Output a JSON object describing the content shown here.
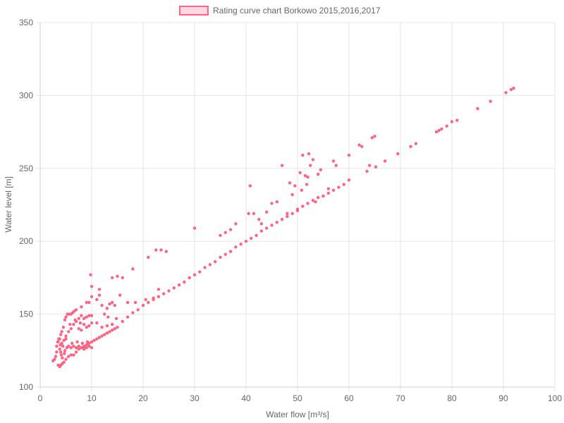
{
  "chart_data": {
    "type": "scatter",
    "title": "",
    "xlabel": "Water flow [m³/s]",
    "ylabel": "Water level [m]",
    "xlim": [
      0,
      100
    ],
    "ylim": [
      100,
      350
    ],
    "xticks": [
      0,
      10,
      20,
      30,
      40,
      50,
      60,
      70,
      80,
      90,
      100
    ],
    "yticks": [
      100,
      150,
      200,
      250,
      300,
      350
    ],
    "grid": true,
    "legend_position": "top-center",
    "colors": {
      "point": "#ff6384",
      "legend_fill": "#ffd9e1",
      "grid": "#e6e6e6"
    },
    "series": [
      {
        "name": "Rating curve chart Borkowo 2015,2016,2017",
        "points": [
          [
            2.5,
            118
          ],
          [
            2.8,
            119
          ],
          [
            3.0,
            121
          ],
          [
            3.2,
            124
          ],
          [
            3.5,
            131
          ],
          [
            3.8,
            133
          ],
          [
            4.0,
            136
          ],
          [
            4.2,
            138
          ],
          [
            4.5,
            141
          ],
          [
            4.8,
            146
          ],
          [
            5.0,
            148
          ],
          [
            5.3,
            150
          ],
          [
            5.6,
            150
          ],
          [
            6.0,
            150
          ],
          [
            6.3,
            151
          ],
          [
            6.6,
            152
          ],
          [
            7.0,
            153
          ],
          [
            3.5,
            115
          ],
          [
            3.8,
            114
          ],
          [
            4.0,
            115
          ],
          [
            4.3,
            116
          ],
          [
            4.6,
            117
          ],
          [
            5.0,
            119
          ],
          [
            5.5,
            121
          ],
          [
            6.0,
            122
          ],
          [
            6.5,
            122
          ],
          [
            7.0,
            124
          ],
          [
            7.5,
            126
          ],
          [
            8.0,
            127
          ],
          [
            8.5,
            128
          ],
          [
            9.0,
            129
          ],
          [
            9.5,
            130
          ],
          [
            10.0,
            131
          ],
          [
            10.5,
            132
          ],
          [
            11.0,
            133
          ],
          [
            11.5,
            134
          ],
          [
            12.0,
            135
          ],
          [
            12.5,
            136
          ],
          [
            13.0,
            137
          ],
          [
            13.5,
            138
          ],
          [
            14.0,
            139
          ],
          [
            14.5,
            140
          ],
          [
            15.0,
            141
          ],
          [
            3.2,
            128
          ],
          [
            3.4,
            131
          ],
          [
            3.6,
            133
          ],
          [
            3.8,
            126
          ],
          [
            4.0,
            124
          ],
          [
            4.2,
            130
          ],
          [
            4.4,
            128
          ],
          [
            4.6,
            132
          ],
          [
            4.8,
            125
          ],
          [
            5.0,
            133
          ],
          [
            5.2,
            127
          ],
          [
            4.1,
            122
          ],
          [
            4.3,
            120
          ],
          [
            3.9,
            129
          ],
          [
            4.7,
            123
          ],
          [
            5.5,
            128
          ],
          [
            6.0,
            127
          ],
          [
            6.5,
            128
          ],
          [
            7.0,
            127
          ],
          [
            7.5,
            128
          ],
          [
            8.0,
            127
          ],
          [
            8.5,
            126
          ],
          [
            9.0,
            127
          ],
          [
            9.5,
            128
          ],
          [
            10.0,
            127
          ],
          [
            6.2,
            130
          ],
          [
            7.2,
            131
          ],
          [
            8.2,
            130
          ],
          [
            9.2,
            131
          ],
          [
            5.0,
            135
          ],
          [
            5.5,
            138
          ],
          [
            6.0,
            140
          ],
          [
            6.5,
            143
          ],
          [
            7.0,
            145
          ],
          [
            7.5,
            147
          ],
          [
            8.0,
            149
          ],
          [
            8.5,
            147
          ],
          [
            9.0,
            148
          ],
          [
            9.5,
            149
          ],
          [
            10.0,
            149
          ],
          [
            5.8,
            143
          ],
          [
            6.8,
            146
          ],
          [
            7.8,
            144
          ],
          [
            7.5,
            140
          ],
          [
            8.0,
            139
          ],
          [
            9.0,
            141
          ],
          [
            10.0,
            144
          ],
          [
            11.0,
            144
          ],
          [
            12.0,
            141
          ],
          [
            13.0,
            142
          ],
          [
            14.0,
            143
          ],
          [
            8.5,
            143
          ],
          [
            9.5,
            142
          ],
          [
            8.0,
            155
          ],
          [
            9.0,
            158
          ],
          [
            10.0,
            162
          ],
          [
            11.0,
            160
          ],
          [
            11.5,
            163
          ],
          [
            9.5,
            158
          ],
          [
            12.0,
            156
          ],
          [
            13.0,
            154
          ],
          [
            13.5,
            157
          ],
          [
            14.0,
            158
          ],
          [
            14.5,
            156
          ],
          [
            12.5,
            150
          ],
          [
            13.2,
            148
          ],
          [
            14.8,
            147
          ],
          [
            9.8,
            177
          ],
          [
            10.0,
            169
          ],
          [
            11.5,
            167
          ],
          [
            14.0,
            175
          ],
          [
            15.0,
            176
          ],
          [
            16.0,
            175
          ],
          [
            18.0,
            181
          ],
          [
            21.0,
            189
          ],
          [
            15.5,
            163
          ],
          [
            17.0,
            158
          ],
          [
            18.5,
            158
          ],
          [
            20.5,
            160
          ],
          [
            22.0,
            161
          ],
          [
            23.0,
            167
          ],
          [
            22.5,
            194
          ],
          [
            23.5,
            194
          ],
          [
            24.5,
            193
          ],
          [
            30.0,
            209
          ],
          [
            35.0,
            204
          ],
          [
            36.0,
            206
          ],
          [
            37.0,
            208
          ],
          [
            38.0,
            212
          ],
          [
            16.0,
            145
          ],
          [
            17.0,
            148
          ],
          [
            18.0,
            151
          ],
          [
            19.0,
            153
          ],
          [
            20.0,
            156
          ],
          [
            21.0,
            158
          ],
          [
            22.0,
            160
          ],
          [
            23.0,
            162
          ],
          [
            24.0,
            164
          ],
          [
            25.0,
            166
          ],
          [
            26.0,
            168
          ],
          [
            27.0,
            170
          ],
          [
            28.0,
            172
          ],
          [
            29.0,
            175
          ],
          [
            30.0,
            177
          ],
          [
            31.0,
            179
          ],
          [
            32.0,
            182
          ],
          [
            33.0,
            184
          ],
          [
            34.0,
            186
          ],
          [
            35.0,
            189
          ],
          [
            36.0,
            191
          ],
          [
            37.0,
            193
          ],
          [
            38.0,
            196
          ],
          [
            39.0,
            198
          ],
          [
            40.0,
            200
          ],
          [
            41.0,
            202
          ],
          [
            42.0,
            204
          ],
          [
            43.0,
            207
          ],
          [
            44.0,
            209
          ],
          [
            45.0,
            211
          ],
          [
            46.0,
            213
          ],
          [
            47.0,
            215
          ],
          [
            48.0,
            217
          ],
          [
            49.0,
            219
          ],
          [
            50.0,
            222
          ],
          [
            51.0,
            224
          ],
          [
            52.0,
            226
          ],
          [
            53.0,
            228
          ],
          [
            54.0,
            230
          ],
          [
            55.0,
            231
          ],
          [
            56.0,
            233
          ],
          [
            57.0,
            235
          ],
          [
            58.0,
            237
          ],
          [
            59.0,
            239
          ],
          [
            60.0,
            242
          ],
          [
            40.5,
            219
          ],
          [
            40.8,
            238
          ],
          [
            41.5,
            219
          ],
          [
            42.5,
            215
          ],
          [
            43.0,
            212
          ],
          [
            44.0,
            220
          ],
          [
            45.0,
            226
          ],
          [
            46.0,
            227
          ],
          [
            47.0,
            252
          ],
          [
            48.0,
            219
          ],
          [
            48.5,
            240
          ],
          [
            49.0,
            232
          ],
          [
            49.5,
            238
          ],
          [
            50.0,
            221
          ],
          [
            50.5,
            247
          ],
          [
            51.0,
            259
          ],
          [
            51.5,
            245
          ],
          [
            52.0,
            244
          ],
          [
            52.5,
            252
          ],
          [
            53.0,
            256
          ],
          [
            54.0,
            246
          ],
          [
            54.5,
            249
          ],
          [
            55.0,
            231
          ],
          [
            56.0,
            236
          ],
          [
            57.0,
            255
          ],
          [
            57.5,
            252
          ],
          [
            52.2,
            260
          ],
          [
            51.8,
            239
          ],
          [
            53.5,
            227
          ],
          [
            50.8,
            235
          ],
          [
            60.0,
            259
          ],
          [
            62.0,
            266
          ],
          [
            62.5,
            265
          ],
          [
            63.5,
            248
          ],
          [
            64.0,
            252
          ],
          [
            64.5,
            271
          ],
          [
            65.0,
            272
          ],
          [
            65.2,
            251
          ],
          [
            67.0,
            255
          ],
          [
            69.5,
            260
          ],
          [
            72.0,
            265
          ],
          [
            73.0,
            267
          ],
          [
            77.0,
            275
          ],
          [
            77.5,
            276
          ],
          [
            78.0,
            277
          ],
          [
            79.0,
            279
          ],
          [
            80.0,
            282
          ],
          [
            81.0,
            283
          ],
          [
            85.0,
            291
          ],
          [
            87.5,
            296
          ],
          [
            90.5,
            302
          ],
          [
            91.5,
            304
          ],
          [
            92.0,
            305
          ]
        ]
      }
    ]
  }
}
